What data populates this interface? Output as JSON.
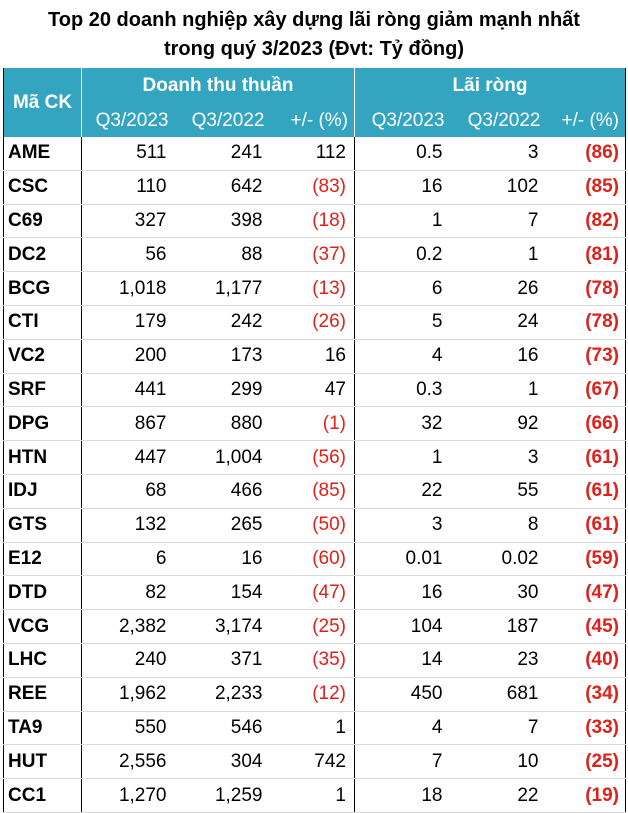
{
  "title_line1": "Top 20 doanh nghiệp xây dựng lãi ròng giảm mạnh nhất",
  "title_line2": "trong quý 3/2023 (Đvt: Tỷ đồng)",
  "header": {
    "code": "Mã CK",
    "group_revenue": "Doanh thu thuần",
    "group_profit": "Lãi ròng",
    "q3_2023": "Q3/2023",
    "q3_2022": "Q3/2022",
    "change": "+/- (%)"
  },
  "rows": [
    {
      "code": "AME",
      "rev23": "511",
      "rev22": "241",
      "revchg": "112",
      "prof23": "0.5",
      "prof22": "3",
      "profchg": "(86)"
    },
    {
      "code": "CSC",
      "rev23": "110",
      "rev22": "642",
      "revchg": "(83)",
      "prof23": "16",
      "prof22": "102",
      "profchg": "(85)"
    },
    {
      "code": "C69",
      "rev23": "327",
      "rev22": "398",
      "revchg": "(18)",
      "prof23": "1",
      "prof22": "7",
      "profchg": "(82)"
    },
    {
      "code": "DC2",
      "rev23": "56",
      "rev22": "88",
      "revchg": "(37)",
      "prof23": "0.2",
      "prof22": "1",
      "profchg": "(81)"
    },
    {
      "code": "BCG",
      "rev23": "1,018",
      "rev22": "1,177",
      "revchg": "(13)",
      "prof23": "6",
      "prof22": "26",
      "profchg": "(78)"
    },
    {
      "code": "CTI",
      "rev23": "179",
      "rev22": "242",
      "revchg": "(26)",
      "prof23": "5",
      "prof22": "24",
      "profchg": "(78)"
    },
    {
      "code": "VC2",
      "rev23": "200",
      "rev22": "173",
      "revchg": "16",
      "prof23": "4",
      "prof22": "16",
      "profchg": "(73)"
    },
    {
      "code": "SRF",
      "rev23": "441",
      "rev22": "299",
      "revchg": "47",
      "prof23": "0.3",
      "prof22": "1",
      "profchg": "(67)"
    },
    {
      "code": "DPG",
      "rev23": "867",
      "rev22": "880",
      "revchg": "(1)",
      "prof23": "32",
      "prof22": "92",
      "profchg": "(66)"
    },
    {
      "code": "HTN",
      "rev23": "447",
      "rev22": "1,004",
      "revchg": "(56)",
      "prof23": "1",
      "prof22": "3",
      "profchg": "(61)"
    },
    {
      "code": "IDJ",
      "rev23": "68",
      "rev22": "466",
      "revchg": "(85)",
      "prof23": "22",
      "prof22": "55",
      "profchg": "(61)"
    },
    {
      "code": "GTS",
      "rev23": "132",
      "rev22": "265",
      "revchg": "(50)",
      "prof23": "3",
      "prof22": "8",
      "profchg": "(61)"
    },
    {
      "code": "E12",
      "rev23": "6",
      "rev22": "16",
      "revchg": "(60)",
      "prof23": "0.01",
      "prof22": "0.02",
      "profchg": "(59)"
    },
    {
      "code": "DTD",
      "rev23": "82",
      "rev22": "154",
      "revchg": "(47)",
      "prof23": "16",
      "prof22": "30",
      "profchg": "(47)"
    },
    {
      "code": "VCG",
      "rev23": "2,382",
      "rev22": "3,174",
      "revchg": "(25)",
      "prof23": "104",
      "prof22": "187",
      "profchg": "(45)"
    },
    {
      "code": "LHC",
      "rev23": "240",
      "rev22": "371",
      "revchg": "(35)",
      "prof23": "14",
      "prof22": "23",
      "profchg": "(40)"
    },
    {
      "code": "REE",
      "rev23": "1,962",
      "rev22": "2,233",
      "revchg": "(12)",
      "prof23": "450",
      "prof22": "681",
      "profchg": "(34)"
    },
    {
      "code": "TA9",
      "rev23": "550",
      "rev22": "546",
      "revchg": "1",
      "prof23": "4",
      "prof22": "7",
      "profchg": "(33)"
    },
    {
      "code": "HUT",
      "rev23": "2,556",
      "rev22": "304",
      "revchg": "742",
      "prof23": "7",
      "prof22": "10",
      "profchg": "(25)"
    },
    {
      "code": "CC1",
      "rev23": "1,270",
      "rev22": "1,259",
      "revchg": "1",
      "prof23": "18",
      "prof22": "22",
      "profchg": "(19)"
    }
  ],
  "colors": {
    "header_bg": "#33a5c0",
    "negative": "#e0201a"
  }
}
